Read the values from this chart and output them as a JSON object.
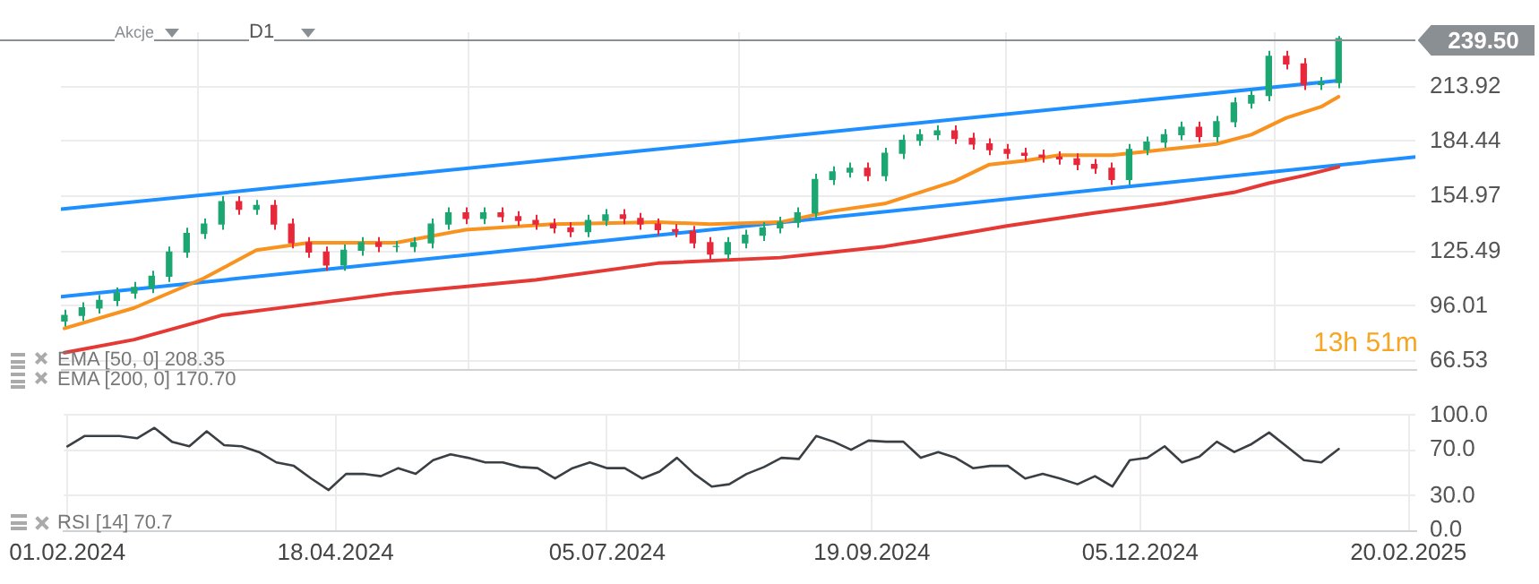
{
  "chart_data": [
    {
      "type": "candlestick",
      "x": [
        "2024-02-01",
        "2024-02-06",
        "2024-02-11",
        "2024-02-16",
        "2024-02-21",
        "2024-02-26",
        "2024-03-02",
        "2024-03-07",
        "2024-03-12",
        "2024-03-17",
        "2024-03-22",
        "2024-03-27",
        "2024-04-01",
        "2024-04-06",
        "2024-04-11",
        "2024-04-16",
        "2024-04-21",
        "2024-04-26",
        "2024-05-01",
        "2024-05-06",
        "2024-05-11",
        "2024-05-16",
        "2024-05-21",
        "2024-05-26",
        "2024-05-31",
        "2024-06-05",
        "2024-06-10",
        "2024-06-15",
        "2024-06-20",
        "2024-06-25",
        "2024-06-30",
        "2024-07-05",
        "2024-07-10",
        "2024-07-15",
        "2024-07-20",
        "2024-07-25",
        "2024-07-30",
        "2024-08-04",
        "2024-08-09",
        "2024-08-14",
        "2024-08-19",
        "2024-08-24",
        "2024-08-29",
        "2024-09-03",
        "2024-09-08",
        "2024-09-13",
        "2024-09-18",
        "2024-09-23",
        "2024-09-28",
        "2024-10-03",
        "2024-10-08",
        "2024-10-13",
        "2024-10-18",
        "2024-10-23",
        "2024-10-28",
        "2024-11-02",
        "2024-11-07",
        "2024-11-12",
        "2024-11-17",
        "2024-11-22",
        "2024-11-27",
        "2024-12-02",
        "2024-12-07",
        "2024-12-12",
        "2024-12-17",
        "2024-12-22",
        "2024-12-27",
        "2025-01-01",
        "2025-01-06",
        "2025-01-11",
        "2025-01-16",
        "2025-01-21",
        "2025-01-26",
        "2025-01-31"
      ],
      "series": [
        {
          "ohlc": [
            [
              88,
              94,
              85,
              91
            ],
            [
              91,
              98,
              88,
              95
            ],
            [
              95,
              102,
              92,
              99
            ],
            [
              99,
              106,
              96,
              103
            ],
            [
              103,
              109,
              100,
              106
            ],
            [
              106,
              115,
              103,
              112
            ],
            [
              112,
              128,
              109,
              125
            ],
            [
              125,
              138,
              122,
              135
            ],
            [
              135,
              143,
              132,
              140
            ],
            [
              140,
              155,
              137,
              152
            ],
            [
              152,
              155,
              145,
              148
            ],
            [
              148,
              153,
              145,
              150
            ],
            [
              150,
              153,
              137,
              140
            ],
            [
              140,
              143,
              127,
              130
            ],
            [
              130,
              133,
              122,
              125
            ],
            [
              125,
              128,
              115,
              118
            ],
            [
              118,
              129,
              115,
              126
            ],
            [
              126,
              133,
              123,
              130
            ],
            [
              130,
              133,
              125,
              128
            ],
            [
              128,
              131,
              125,
              128
            ],
            [
              128,
              133,
              125,
              130
            ],
            [
              130,
              143,
              127,
              140
            ],
            [
              140,
              149,
              137,
              146
            ],
            [
              146,
              149,
              140,
              143
            ],
            [
              143,
              149,
              140,
              146
            ],
            [
              146,
              149,
              141,
              144
            ],
            [
              144,
              147,
              139,
              142
            ],
            [
              142,
              145,
              137,
              140
            ],
            [
              140,
              143,
              135,
              138
            ],
            [
              138,
              141,
              133,
              136
            ],
            [
              136,
              145,
              133,
              142
            ],
            [
              142,
              148,
              139,
              145
            ],
            [
              145,
              148,
              140,
              143
            ],
            [
              143,
              146,
              137,
              140
            ],
            [
              140,
              143,
              134,
              137
            ],
            [
              137,
              140,
              133,
              136
            ],
            [
              136,
              139,
              127,
              130
            ],
            [
              130,
              133,
              121,
              124
            ],
            [
              124,
              133,
              121,
              130
            ],
            [
              130,
              137,
              127,
              134
            ],
            [
              134,
              141,
              131,
              138
            ],
            [
              138,
              144,
              135,
              141
            ],
            [
              141,
              149,
              138,
              146
            ],
            [
              146,
              167,
              143,
              164
            ],
            [
              164,
              171,
              161,
              168
            ],
            [
              168,
              173,
              165,
              170
            ],
            [
              170,
              173,
              163,
              166
            ],
            [
              166,
              181,
              163,
              178
            ],
            [
              178,
              188,
              175,
              185
            ],
            [
              185,
              191,
              182,
              188
            ],
            [
              188,
              193,
              185,
              190
            ],
            [
              190,
              193,
              183,
              186
            ],
            [
              186,
              189,
              180,
              183
            ],
            [
              183,
              186,
              177,
              180
            ],
            [
              180,
              183,
              175,
              178
            ],
            [
              178,
              181,
              174,
              177
            ],
            [
              177,
              180,
              173,
              176
            ],
            [
              176,
              179,
              172,
              175
            ],
            [
              175,
              178,
              169,
              172
            ],
            [
              172,
              175,
              167,
              170
            ],
            [
              170,
              173,
              161,
              164
            ],
            [
              164,
              183,
              161,
              180
            ],
            [
              180,
              187,
              177,
              184
            ],
            [
              184,
              191,
              181,
              188
            ],
            [
              188,
              195,
              185,
              192
            ],
            [
              192,
              195,
              184,
              187
            ],
            [
              187,
              198,
              184,
              195
            ],
            [
              195,
              208,
              192,
              205
            ],
            [
              205,
              212,
              202,
              209
            ],
            [
              209,
              233,
              206,
              230
            ],
            [
              230,
              233,
              223,
              226
            ],
            [
              226,
              229,
              212,
              215
            ],
            [
              215,
              219,
              212,
              216
            ],
            [
              216,
              241,
              213,
              239.5
            ]
          ],
          "colors": [
            "#1ba672",
            "#1ba672",
            "#1ba672",
            "#1ba672",
            "#1ba672",
            "#1ba672",
            "#1ba672",
            "#1ba672",
            "#1ba672",
            "#1ba672",
            "#e8283a",
            "#1ba672",
            "#e8283a",
            "#e8283a",
            "#e8283a",
            "#e8283a",
            "#1ba672",
            "#1ba672",
            "#e8283a",
            "#1ba672",
            "#1ba672",
            "#1ba672",
            "#1ba672",
            "#e8283a",
            "#1ba672",
            "#e8283a",
            "#e8283a",
            "#e8283a",
            "#e8283a",
            "#e8283a",
            "#1ba672",
            "#1ba672",
            "#e8283a",
            "#e8283a",
            "#e8283a",
            "#e8283a",
            "#e8283a",
            "#e8283a",
            "#1ba672",
            "#1ba672",
            "#1ba672",
            "#1ba672",
            "#1ba672",
            "#1ba672",
            "#1ba672",
            "#1ba672",
            "#e8283a",
            "#1ba672",
            "#1ba672",
            "#1ba672",
            "#1ba672",
            "#e8283a",
            "#e8283a",
            "#e8283a",
            "#e8283a",
            "#e8283a",
            "#e8283a",
            "#e8283a",
            "#e8283a",
            "#e8283a",
            "#e8283a",
            "#1ba672",
            "#1ba672",
            "#1ba672",
            "#1ba672",
            "#e8283a",
            "#1ba672",
            "#1ba672",
            "#1ba672",
            "#1ba672",
            "#e8283a",
            "#e8283a",
            "#1ba672",
            "#1ba672"
          ]
        },
        {
          "type": "line",
          "color": "#f7931e",
          "x": [
            "2024-02-01",
            "2024-02-21",
            "2024-03-12",
            "2024-03-27",
            "2024-04-11",
            "2024-05-06",
            "2024-05-26",
            "2024-06-20",
            "2024-07-20",
            "2024-08-04",
            "2024-08-24",
            "2024-09-08",
            "2024-09-23",
            "2024-10-03",
            "2024-10-13",
            "2024-10-23",
            "2024-11-02",
            "2024-11-12",
            "2024-11-27",
            "2024-12-12",
            "2024-12-27",
            "2025-01-06",
            "2025-01-16",
            "2025-01-26",
            "2025-01-31"
          ],
          "values": [
            84,
            95,
            111,
            126,
            130,
            130,
            137,
            140,
            141,
            140,
            141,
            147,
            151,
            157,
            163,
            172,
            174,
            177,
            177,
            180,
            183,
            188,
            197,
            203,
            208.35
          ]
        },
        {
          "type": "line",
          "color": "#e53935",
          "x": [
            "2024-02-01",
            "2024-02-21",
            "2024-03-17",
            "2024-04-11",
            "2024-05-06",
            "2024-06-15",
            "2024-07-20",
            "2024-08-24",
            "2024-09-08",
            "2024-09-23",
            "2024-10-03",
            "2024-10-28",
            "2024-11-22",
            "2024-12-12",
            "2025-01-01",
            "2025-01-11",
            "2025-01-21",
            "2025-01-31"
          ],
          "values": [
            71,
            78,
            91,
            97,
            103,
            110,
            119,
            122,
            125,
            128,
            131,
            139,
            146,
            151,
            157,
            162,
            166,
            170.7
          ]
        },
        {
          "type": "line",
          "color": "#1e8fff",
          "x": [
            "2024-01-31",
            "2025-01-31"
          ],
          "values": [
            148,
            217
          ]
        },
        {
          "type": "line",
          "color": "#1e8fff",
          "x": [
            "2024-01-31",
            "2025-02-22"
          ],
          "values": [
            101,
            176
          ]
        }
      ],
      "xlim": [
        "2024-01-31",
        "2025-02-22"
      ],
      "xticks": [
        {
          "value": "2024-02-01",
          "label": null
        },
        {
          "value": "2024-04-18",
          "label": null
        },
        {
          "value": "2024-07-05",
          "label": null
        },
        {
          "value": "2024-09-19",
          "label": null
        },
        {
          "value": "2024-12-05",
          "label": null
        },
        {
          "value": "2025-02-20",
          "label": null
        }
      ],
      "ylim": [
        62,
        243
      ],
      "yticks": [
        66.53,
        96.01,
        125.49,
        154.97,
        184.44,
        213.92
      ],
      "tick_labels": "y",
      "grid": true,
      "ref_lines": [
        {
          "axis": "y",
          "value": 239.5,
          "label": "239.50",
          "color": "#8a8f94"
        }
      ],
      "annotations": [
        "Akcje",
        "D1",
        "EMA [50, 0] 208.35",
        "EMA [200, 0] 170.70",
        "13h 51m"
      ]
    },
    {
      "type": "line",
      "x": [
        "2024-02-01",
        "2024-02-06",
        "2024-02-11",
        "2024-02-16",
        "2024-02-21",
        "2024-02-26",
        "2024-03-02",
        "2024-03-07",
        "2024-03-12",
        "2024-03-17",
        "2024-03-22",
        "2024-03-27",
        "2024-04-01",
        "2024-04-06",
        "2024-04-11",
        "2024-04-16",
        "2024-04-21",
        "2024-04-26",
        "2024-05-01",
        "2024-05-06",
        "2024-05-11",
        "2024-05-16",
        "2024-05-21",
        "2024-05-26",
        "2024-05-31",
        "2024-06-05",
        "2024-06-10",
        "2024-06-15",
        "2024-06-20",
        "2024-06-25",
        "2024-06-30",
        "2024-07-05",
        "2024-07-10",
        "2024-07-15",
        "2024-07-20",
        "2024-07-25",
        "2024-07-30",
        "2024-08-04",
        "2024-08-09",
        "2024-08-14",
        "2024-08-19",
        "2024-08-24",
        "2024-08-29",
        "2024-09-03",
        "2024-09-08",
        "2024-09-13",
        "2024-09-18",
        "2024-09-23",
        "2024-09-28",
        "2024-10-03",
        "2024-10-08",
        "2024-10-13",
        "2024-10-18",
        "2024-10-23",
        "2024-10-28",
        "2024-11-02",
        "2024-11-07",
        "2024-11-12",
        "2024-11-17",
        "2024-11-22",
        "2024-11-27",
        "2024-12-02",
        "2024-12-07",
        "2024-12-12",
        "2024-12-17",
        "2024-12-22",
        "2024-12-27",
        "2025-01-01",
        "2025-01-06",
        "2025-01-11",
        "2025-01-16",
        "2025-01-21",
        "2025-01-26",
        "2025-01-31"
      ],
      "series": [
        {
          "color": "#3a3f44",
          "values": [
            73,
            82,
            82,
            82,
            80,
            89,
            77,
            73,
            86,
            74,
            73,
            68,
            59,
            56,
            45,
            35,
            49,
            49,
            47,
            54,
            49,
            61,
            66,
            63,
            59,
            59,
            55,
            54,
            45,
            54,
            59,
            54,
            54,
            45,
            51,
            63,
            49,
            38,
            40,
            49,
            55,
            63,
            62,
            82,
            77,
            70,
            78,
            77,
            77,
            63,
            68,
            63,
            54,
            56,
            56,
            45,
            49,
            45,
            40,
            47,
            38,
            61,
            63,
            73,
            59,
            64,
            77,
            68,
            75,
            85,
            73,
            61,
            59,
            70.7
          ]
        }
      ],
      "xlim": [
        "2024-01-31",
        "2025-02-22"
      ],
      "xticks": [
        {
          "value": "2024-02-01",
          "label": "01.02.2024"
        },
        {
          "value": "2024-04-18",
          "label": "18.04.2024"
        },
        {
          "value": "2024-07-05",
          "label": "05.07.2024"
        },
        {
          "value": "2024-09-19",
          "label": "19.09.2024"
        },
        {
          "value": "2024-12-05",
          "label": "05.12.2024"
        },
        {
          "value": "2025-02-20",
          "label": "20.02.2025"
        }
      ],
      "ylim": [
        0,
        100
      ],
      "yticks": [
        {
          "value": 0,
          "label": "0.0"
        },
        {
          "value": 30,
          "label": "30.0"
        },
        {
          "value": 70,
          "label": "70.0"
        },
        {
          "value": 100,
          "label": "100.0"
        }
      ],
      "grid": true,
      "annotations": [
        "RSI [14] 70.7"
      ]
    }
  ]
}
